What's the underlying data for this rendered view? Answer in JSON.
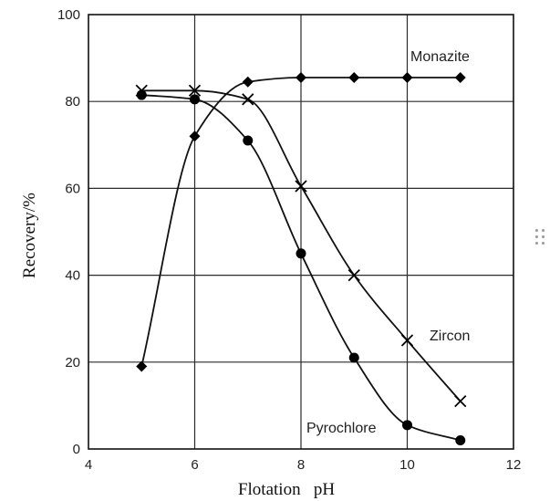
{
  "chart_data": {
    "type": "line",
    "title": "",
    "xlabel": "Flotation   pH",
    "ylabel": "Recovery/%",
    "xlim": [
      4,
      12
    ],
    "ylim": [
      0,
      100
    ],
    "xticks": [
      4,
      6,
      8,
      10,
      12
    ],
    "yticks": [
      0,
      20,
      40,
      60,
      80,
      100
    ],
    "grid": true,
    "series": [
      {
        "name": "Monazite",
        "marker": "diamond",
        "x": [
          5,
          6,
          7,
          8,
          9,
          10,
          11
        ],
        "y": [
          19,
          72,
          84.5,
          85.5,
          85.5,
          85.5,
          85.5
        ]
      },
      {
        "name": "Zircon",
        "marker": "x",
        "x": [
          5,
          6,
          7,
          8,
          9,
          10,
          11
        ],
        "y": [
          82.5,
          82.5,
          80.5,
          60.5,
          40,
          25,
          11
        ]
      },
      {
        "name": "Pyrochlore",
        "marker": "circle",
        "x": [
          5,
          6,
          7,
          8,
          9,
          10,
          11
        ],
        "y": [
          81.5,
          80.5,
          71,
          45,
          21,
          5.5,
          2
        ]
      }
    ]
  },
  "colors": {
    "line": "#111111",
    "grid": "#2a2a2a",
    "marker": "#000000"
  },
  "ui": {
    "resize_handle_icon": "drag-handle-icon"
  }
}
